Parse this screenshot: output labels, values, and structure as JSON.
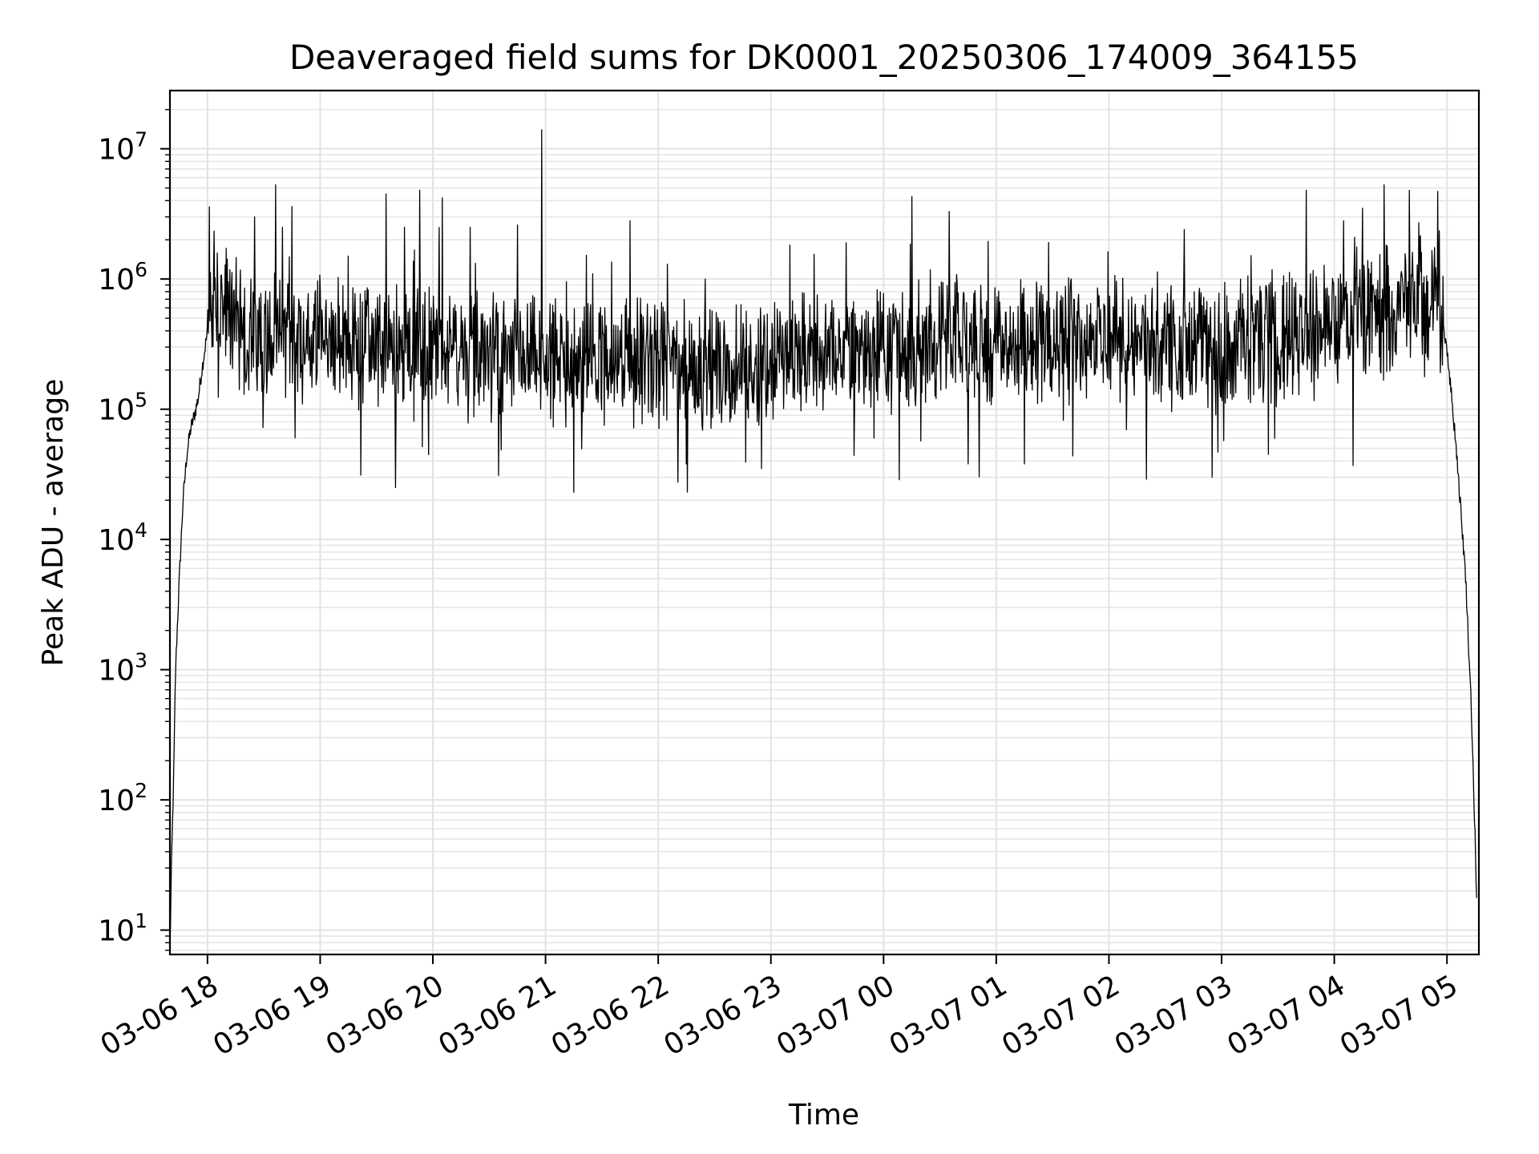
{
  "chart_data": {
    "type": "line",
    "title": "Deaveraged field sums for DK0001_20250306_174009_364155",
    "xlabel": "Time",
    "ylabel": "Peak ADU - average",
    "y_scale": "log",
    "grid": true,
    "x_range": [
      "03-06 17:40",
      "03-07 05:17"
    ],
    "ylim": [
      6.5,
      28000000
    ],
    "x_tick_labels": [
      "03-06 18",
      "03-06 19",
      "03-06 20",
      "03-06 21",
      "03-06 22",
      "03-06 23",
      "03-07 00",
      "03-07 01",
      "03-07 02",
      "03-07 03",
      "03-07 04",
      "03-07 05"
    ],
    "y_ticks": [
      {
        "value": 10,
        "mantissa": "10",
        "exponent": "1"
      },
      {
        "value": 100,
        "mantissa": "10",
        "exponent": "2"
      },
      {
        "value": 1000,
        "mantissa": "10",
        "exponent": "3"
      },
      {
        "value": 10000,
        "mantissa": "10",
        "exponent": "4"
      },
      {
        "value": 100000,
        "mantissa": "10",
        "exponent": "5"
      },
      {
        "value": 1000000,
        "mantissa": "10",
        "exponent": "6"
      },
      {
        "value": 10000000,
        "mantissa": "10",
        "exponent": "7"
      }
    ],
    "series": [
      {
        "color": "#000000",
        "points": [
          [
            "03-06 17:40",
            7
          ],
          [
            "03-06 17:41",
            40
          ],
          [
            "03-06 17:42",
            150
          ],
          [
            "03-06 17:43",
            1000
          ],
          [
            "03-06 17:45",
            5000
          ],
          [
            "03-06 17:47",
            20000
          ],
          [
            "03-06 17:49",
            45000
          ],
          [
            "03-06 17:51",
            70000
          ],
          [
            "03-06 17:53",
            90000
          ],
          [
            "03-06 17:55",
            120000
          ],
          [
            "03-06 17:57",
            200000
          ],
          [
            "03-06 18:00",
            400000
          ],
          [
            "03-06 18:05",
            600000
          ],
          [
            "03-06 18:10",
            550000
          ],
          [
            "03-06 18:15",
            500000
          ],
          [
            "03-06 18:20",
            400000
          ],
          [
            "03-06 18:30",
            350000
          ],
          [
            "03-06 19:00",
            330000
          ],
          [
            "03-06 19:30",
            300000
          ],
          [
            "03-06 20:00",
            280000
          ],
          [
            "03-06 20:30",
            250000
          ],
          [
            "03-06 21:00",
            230000
          ],
          [
            "03-06 21:30",
            220000
          ],
          [
            "03-06 22:00",
            220000
          ],
          [
            "03-06 22:30",
            210000
          ],
          [
            "03-06 23:00",
            230000
          ],
          [
            "03-06 23:30",
            270000
          ],
          [
            "03-07 00:00",
            300000
          ],
          [
            "03-07 00:30",
            320000
          ],
          [
            "03-07 01:00",
            330000
          ],
          [
            "03-07 01:30",
            350000
          ],
          [
            "03-07 02:00",
            330000
          ],
          [
            "03-07 02:30",
            310000
          ],
          [
            "03-07 03:00",
            300000
          ],
          [
            "03-07 03:30",
            350000
          ],
          [
            "03-07 04:00",
            450000
          ],
          [
            "03-07 04:30",
            600000
          ],
          [
            "03-07 04:50",
            750000
          ],
          [
            "03-07 04:55",
            700000
          ],
          [
            "03-07 05:00",
            300000
          ],
          [
            "03-07 05:05",
            50000
          ],
          [
            "03-07 05:10",
            5000
          ],
          [
            "03-07 05:13",
            500
          ],
          [
            "03-07 05:15",
            50
          ],
          [
            "03-07 05:16",
            13
          ]
        ],
        "spikes": [
          [
            "03-06 18:25",
            3000000
          ],
          [
            "03-06 18:40",
            2500000
          ],
          [
            "03-06 18:45",
            3600000
          ],
          [
            "03-06 19:15",
            1500000
          ],
          [
            "03-06 19:35",
            4500000
          ],
          [
            "03-06 19:45",
            2500000
          ],
          [
            "03-06 19:53",
            4800000
          ],
          [
            "03-06 20:05",
            4200000
          ],
          [
            "03-06 20:20",
            2500000
          ],
          [
            "03-06 20:45",
            2600000
          ],
          [
            "03-06 20:58",
            14000000
          ],
          [
            "03-06 21:45",
            2800000
          ],
          [
            "03-06 22:05",
            1300000
          ],
          [
            "03-06 22:25",
            1000000
          ],
          [
            "03-06 23:40",
            1900000
          ],
          [
            "03-07 00:15",
            4300000
          ],
          [
            "03-07 00:35",
            3300000
          ],
          [
            "03-07 01:40",
            1000000
          ],
          [
            "03-07 02:40",
            2400000
          ],
          [
            "03-07 03:45",
            4800000
          ],
          [
            "03-07 04:05",
            2800000
          ],
          [
            "03-07 04:15",
            3500000
          ],
          [
            "03-07 04:40",
            4800000
          ],
          [
            "03-07 04:45",
            2700000
          ],
          [
            "03-07 04:55",
            4700000
          ]
        ],
        "dips": [
          [
            "03-06 18:40",
            37000
          ],
          [
            "03-06 18:45",
            35000
          ],
          [
            "03-06 19:40",
            25000
          ],
          [
            "03-06 20:35",
            31000
          ],
          [
            "03-06 21:15",
            23000
          ],
          [
            "03-06 22:15",
            38000
          ],
          [
            "03-06 22:55",
            35000
          ],
          [
            "03-06 23:55",
            60000
          ],
          [
            "03-07 00:45",
            38000
          ],
          [
            "03-07 01:15",
            38000
          ],
          [
            "03-07 02:20",
            29000
          ],
          [
            "03-07 02:55",
            30000
          ],
          [
            "03-07 03:25",
            45000
          ],
          [
            "03-07 04:10",
            37000
          ]
        ]
      }
    ]
  }
}
